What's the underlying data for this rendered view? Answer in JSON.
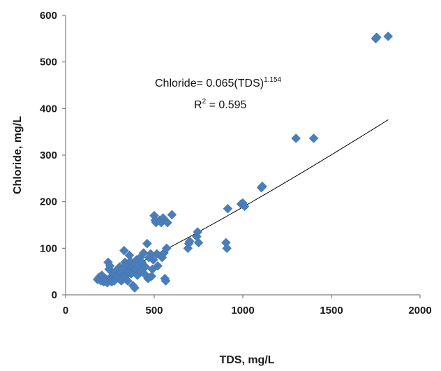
{
  "chart_data": {
    "type": "scatter",
    "title": "",
    "xlabel": "TDS, mg/L",
    "ylabel": "Chloride, mg/L",
    "xlim": [
      0,
      2000
    ],
    "ylim": [
      0,
      600
    ],
    "xticks": [
      "0",
      "500",
      "1000",
      "1500",
      "2000"
    ],
    "yticks": [
      "0",
      "100",
      "200",
      "300",
      "400",
      "500",
      "600"
    ],
    "grid": false,
    "legend": "none",
    "marker": "diamond",
    "color": "#4A7EBB",
    "points": [
      [
        180,
        33
      ],
      [
        190,
        38
      ],
      [
        200,
        30
      ],
      [
        205,
        42
      ],
      [
        215,
        28
      ],
      [
        225,
        35
      ],
      [
        235,
        26
      ],
      [
        240,
        70
      ],
      [
        245,
        55
      ],
      [
        250,
        62
      ],
      [
        255,
        38
      ],
      [
        260,
        28
      ],
      [
        270,
        45
      ],
      [
        275,
        30
      ],
      [
        285,
        52
      ],
      [
        290,
        40
      ],
      [
        300,
        35
      ],
      [
        305,
        60
      ],
      [
        310,
        48
      ],
      [
        315,
        30
      ],
      [
        320,
        55
      ],
      [
        330,
        95
      ],
      [
        335,
        70
      ],
      [
        340,
        40
      ],
      [
        345,
        65
      ],
      [
        350,
        30
      ],
      [
        355,
        50
      ],
      [
        360,
        85
      ],
      [
        365,
        72
      ],
      [
        370,
        45
      ],
      [
        375,
        60
      ],
      [
        380,
        20
      ],
      [
        385,
        68
      ],
      [
        390,
        15
      ],
      [
        395,
        55
      ],
      [
        400,
        75
      ],
      [
        405,
        42
      ],
      [
        410,
        62
      ],
      [
        420,
        80
      ],
      [
        425,
        50
      ],
      [
        430,
        70
      ],
      [
        440,
        90
      ],
      [
        445,
        45
      ],
      [
        450,
        60
      ],
      [
        460,
        110
      ],
      [
        465,
        35
      ],
      [
        470,
        80
      ],
      [
        480,
        88
      ],
      [
        485,
        40
      ],
      [
        490,
        55
      ],
      [
        495,
        75
      ],
      [
        500,
        170
      ],
      [
        505,
        160
      ],
      [
        510,
        155
      ],
      [
        515,
        88
      ],
      [
        520,
        62
      ],
      [
        530,
        160
      ],
      [
        540,
        155
      ],
      [
        545,
        80
      ],
      [
        550,
        165
      ],
      [
        555,
        90
      ],
      [
        560,
        35
      ],
      [
        565,
        30
      ],
      [
        570,
        100
      ],
      [
        575,
        155
      ],
      [
        600,
        172
      ],
      [
        690,
        100
      ],
      [
        695,
        110
      ],
      [
        700,
        115
      ],
      [
        740,
        125
      ],
      [
        745,
        135
      ],
      [
        750,
        112
      ],
      [
        905,
        112
      ],
      [
        910,
        100
      ],
      [
        915,
        185
      ],
      [
        990,
        195
      ],
      [
        1000,
        197
      ],
      [
        1010,
        190
      ],
      [
        1105,
        230
      ],
      [
        1110,
        233
      ],
      [
        1300,
        336
      ],
      [
        1400,
        336
      ],
      [
        1750,
        550
      ],
      [
        1755,
        553
      ],
      [
        1820,
        555
      ]
    ],
    "trendline": {
      "type": "power",
      "coefficient": 0.065,
      "exponent": 1.154,
      "x_range": [
        180,
        1820
      ]
    },
    "annotations": {
      "equation_prefix": "Chloride= 0.065(TDS)",
      "equation_exponent": "1.154",
      "r2_prefix": "R",
      "r2_exponent": "2",
      "r2_suffix": " = 0.595"
    }
  }
}
